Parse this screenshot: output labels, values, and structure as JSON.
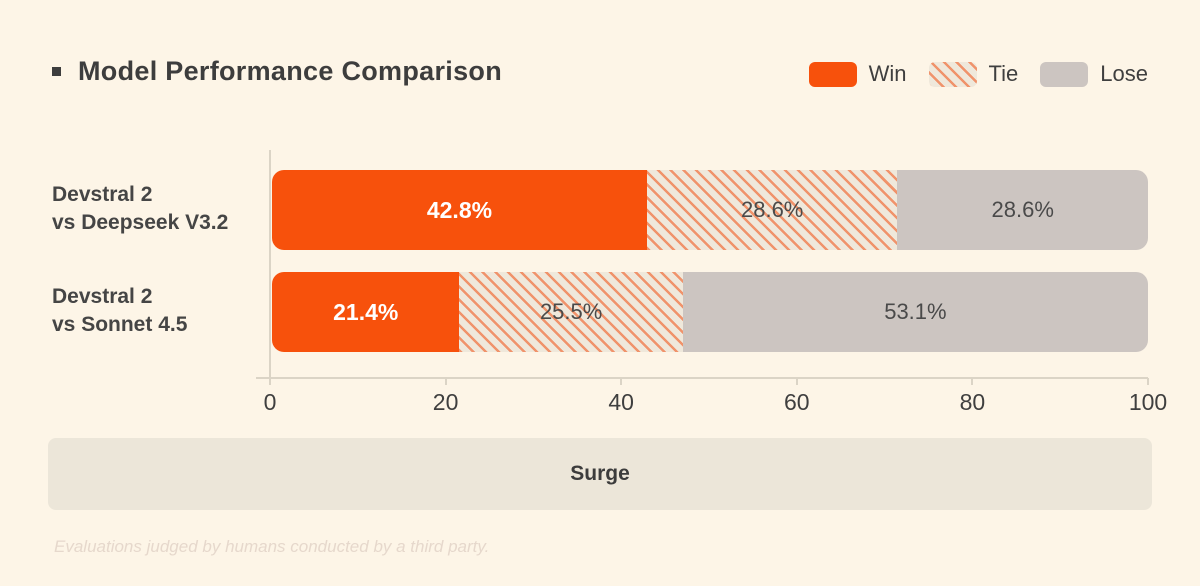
{
  "header": {
    "title": "Model Performance Comparison"
  },
  "legend": {
    "items": [
      "Win",
      "Tie",
      "Lose"
    ]
  },
  "footer": {
    "box_label": "Surge",
    "note": "Evaluations judged by humans conducted by a third party."
  },
  "colors": {
    "background": "#FDF5E7",
    "win": "#F7510C",
    "tie_background": "#EFE8DB",
    "tie_stripe": "#F0936B",
    "lose": "#CCC5C1",
    "title_text": "#3D3D3D",
    "segment_text": "#4A4A4A",
    "axis_line": "#DBD4C6",
    "surge_background": "#ECE6D9",
    "footnote_text": "#E6D8CC"
  },
  "chart_data": {
    "type": "bar",
    "orientation": "horizontal",
    "stacked": true,
    "title": "Model Performance Comparison",
    "categories": [
      "Devstral 2 vs Deepseek V3.2",
      "Devstral 2 vs Sonnet 4.5"
    ],
    "category_lines": [
      [
        "Devstral 2",
        "vs Deepseek V3.2"
      ],
      [
        "Devstral 2",
        "vs Sonnet 4.5"
      ]
    ],
    "series": [
      {
        "name": "Win",
        "key": "win",
        "values": [
          42.8,
          21.4
        ]
      },
      {
        "name": "Tie",
        "key": "tie",
        "values": [
          28.6,
          25.5
        ]
      },
      {
        "name": "Lose",
        "key": "lose",
        "values": [
          28.6,
          53.1
        ]
      }
    ],
    "value_suffix": "%",
    "xlabel": "",
    "ylabel": "",
    "xlim": [
      0,
      100
    ],
    "x_ticks": [
      0,
      20,
      40,
      60,
      80,
      100
    ],
    "grid": false,
    "legend_position": "top-right"
  }
}
